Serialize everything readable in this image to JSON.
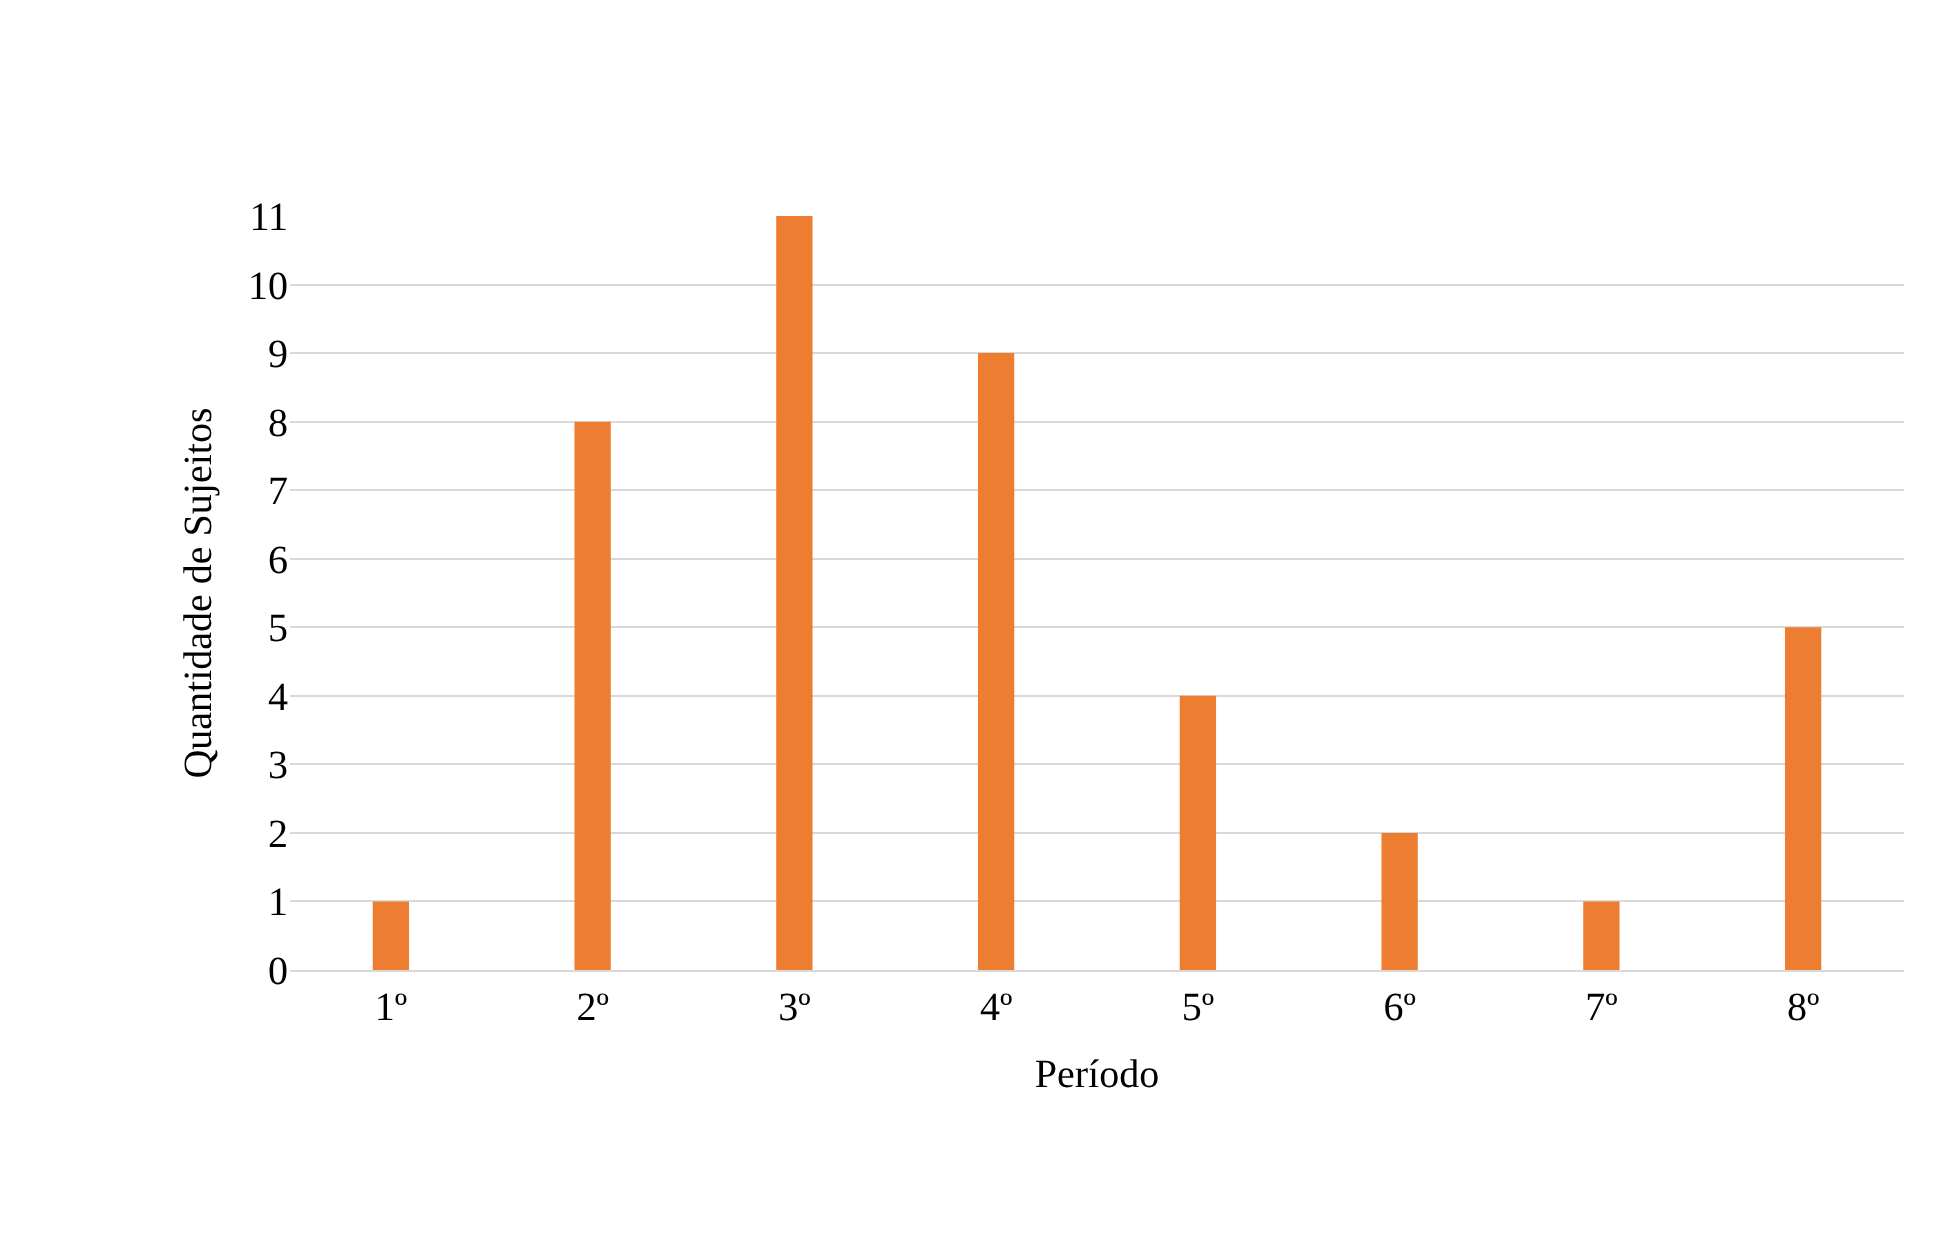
{
  "chart_data": {
    "type": "bar",
    "xlabel": "Período",
    "ylabel": "Quantidade de Sujeitos",
    "categories": [
      "1º",
      "2º",
      "3º",
      "4º",
      "5º",
      "6º",
      "7º",
      "8º"
    ],
    "values": [
      1,
      8,
      11,
      9,
      4,
      2,
      1,
      5
    ],
    "color": "#ed7d31",
    "ylim": [
      0,
      11
    ],
    "yticks": [
      0,
      1,
      2,
      3,
      4,
      5,
      6,
      7,
      8,
      9,
      10,
      11
    ],
    "grid": "y",
    "legend": false
  }
}
